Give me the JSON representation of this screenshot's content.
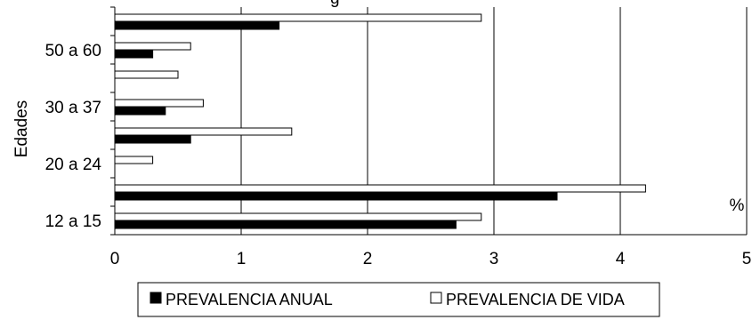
{
  "chart_data": {
    "type": "bar",
    "orientation": "horizontal",
    "title_fragment": "g",
    "categories": [
      "",
      "50 a 60",
      "",
      "30 a 37",
      "",
      "20 a 24",
      "",
      "12 a 15"
    ],
    "series": [
      {
        "name": "PREVALENCIA ANUAL",
        "color": "#000000",
        "values": [
          1.3,
          0.3,
          null,
          0.4,
          0.6,
          null,
          3.5,
          2.7
        ]
      },
      {
        "name": "PREVALENCIA DE VIDA",
        "color": "#ffffff",
        "values": [
          2.9,
          0.6,
          0.5,
          0.7,
          1.4,
          0.3,
          4.2,
          2.9
        ]
      }
    ],
    "xlim": [
      0,
      5
    ],
    "xticks": [
      "0",
      "1",
      "2",
      "3",
      "4",
      "5"
    ],
    "xlabel": "%",
    "ylabel": "Edades",
    "grid": "vertical",
    "legend_position": "bottom"
  }
}
